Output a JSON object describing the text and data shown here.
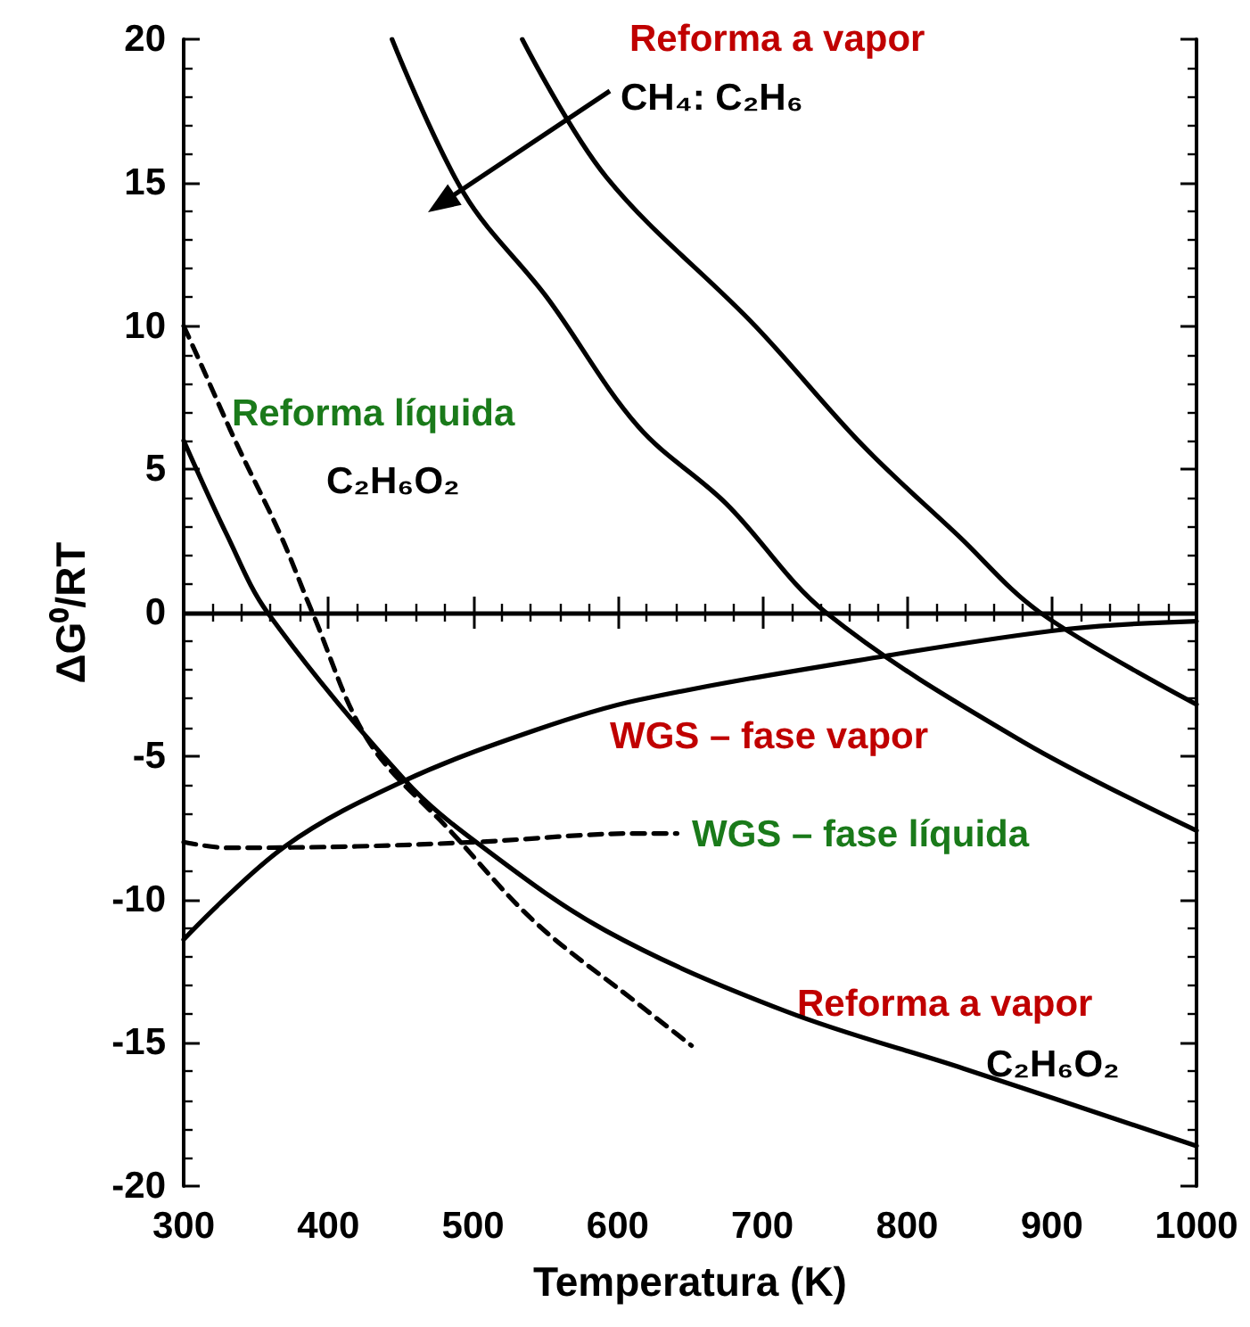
{
  "chart_data": {
    "type": "line",
    "xlabel": "Temperatura (K)",
    "ylabel": "ΔG⁰/RT",
    "xlim": [
      300,
      1000
    ],
    "xticks": [
      300,
      400,
      500,
      600,
      700,
      800,
      900,
      1000
    ],
    "ylim": [
      -20,
      20
    ],
    "yticks": [
      -20,
      -15,
      -10,
      -5,
      0,
      5,
      10,
      15,
      20
    ],
    "grid": false,
    "marker": "none",
    "series": [
      {
        "color": "#000000",
        "line_style": "solid",
        "x": [
          534,
          592,
          695,
          769,
          835,
          892,
          1000
        ],
        "values": [
          20,
          15.2,
          10,
          5.85,
          2.7,
          0,
          -3.2
        ]
      },
      {
        "color": "#000000",
        "line_style": "solid",
        "x": [
          444,
          494,
          551,
          614,
          675,
          744,
          880,
          1000
        ],
        "values": [
          20,
          14.6,
          11,
          6.5,
          3.8,
          0,
          -4.5,
          -7.6
        ]
      },
      {
        "color": "#000000",
        "line_style": "solid",
        "x": [
          300,
          330,
          358,
          453,
          502,
          592,
          716,
          839,
          1000
        ],
        "values": [
          6,
          2.7,
          0,
          -5.85,
          -8,
          -11.1,
          -13.9,
          -15.9,
          -18.6
        ]
      },
      {
        "color": "#000000",
        "line_style": "dashed",
        "x": [
          300,
          309,
          337,
          367,
          389,
          428,
          485,
          543,
          613,
          651
        ],
        "values": [
          10,
          9,
          5.85,
          2.7,
          0,
          -4.5,
          -7.65,
          -10.8,
          -13.6,
          -15.1
        ]
      },
      {
        "color": "#000000",
        "line_style": "solid",
        "x": [
          300,
          370,
          453,
          543,
          614,
          786,
          913,
          1000
        ],
        "values": [
          -11.4,
          -8.15,
          -5.85,
          -4.1,
          -3.05,
          -1.5,
          -0.56,
          -0.3
        ]
      },
      {
        "color": "#000000",
        "line_style": "dashed",
        "x": [
          300,
          330,
          420,
          502,
          614,
          641
        ],
        "values": [
          -8,
          -8.2,
          -8.15,
          -8,
          -7.7,
          -7.7
        ]
      }
    ],
    "ref_lines": [
      {
        "axis": "y",
        "value": 0,
        "color": "#000000"
      }
    ],
    "annotations": [
      "Reforma a vapor",
      "CH₄: C₂H₆",
      "Reforma líquida",
      "C₂H₆O₂",
      "WGS – fase vapor",
      "WGS – fase líquida",
      "Reforma a vapor",
      "C₂H₆O₂"
    ]
  }
}
